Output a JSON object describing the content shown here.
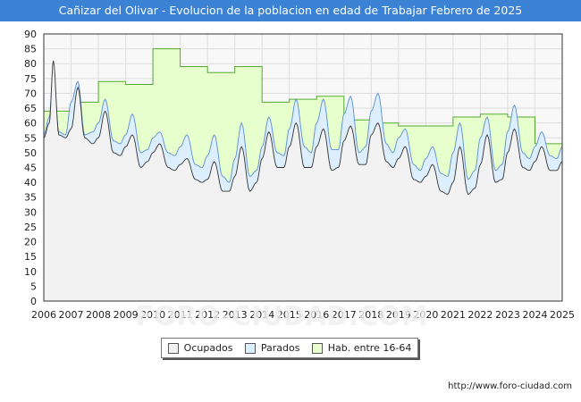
{
  "chart_data": {
    "type": "area",
    "title": "Cañizar del Olivar - Evolucion de la poblacion en edad de Trabajar Febrero de 2025",
    "xlabel": "",
    "ylabel": "",
    "ylim": [
      0,
      90
    ],
    "yticks": [
      0,
      5,
      10,
      15,
      20,
      25,
      30,
      35,
      40,
      45,
      50,
      55,
      60,
      65,
      70,
      75,
      80,
      85,
      90
    ],
    "xticks": [
      "2006",
      "2007",
      "2008",
      "2009",
      "2010",
      "2011",
      "2012",
      "2013",
      "2014",
      "2015",
      "2016",
      "2017",
      "2018",
      "2019",
      "2020",
      "2021",
      "2022",
      "2023",
      "2024",
      "2025"
    ],
    "grid": true,
    "legend": [
      "Ocupados",
      "Parados",
      "Hab. entre 16-64"
    ],
    "legend_position": "bottom",
    "series": [
      {
        "name": "Hab. entre 16-64",
        "x": [
          2006,
          2007,
          2007,
          2008,
          2008,
          2009,
          2009,
          2010,
          2010,
          2011,
          2011,
          2012,
          2012,
          2013,
          2013,
          2014,
          2014,
          2015,
          2015,
          2016,
          2016,
          2017,
          2017,
          2018,
          2018,
          2019,
          2019,
          2020,
          2020,
          2021,
          2021,
          2022,
          2022,
          2023,
          2023,
          2024,
          2024,
          2025
        ],
        "values": [
          64,
          64,
          67,
          67,
          74,
          74,
          73,
          73,
          85,
          85,
          79,
          79,
          77,
          77,
          79,
          79,
          67,
          67,
          68,
          68,
          69,
          69,
          61,
          61,
          60,
          60,
          59,
          59,
          59,
          59,
          62,
          62,
          63,
          63,
          62,
          62,
          53,
          53
        ]
      },
      {
        "name": "Parados",
        "peaks": [
          [
            2006.0,
            56
          ],
          [
            2006.2,
            62
          ],
          [
            2006.35,
            78
          ],
          [
            2006.55,
            57
          ],
          [
            2006.8,
            56
          ],
          [
            2007.0,
            67
          ],
          [
            2007.25,
            74
          ],
          [
            2007.5,
            56
          ],
          [
            2007.8,
            57
          ],
          [
            2008.0,
            60
          ],
          [
            2008.25,
            68
          ],
          [
            2008.55,
            54
          ],
          [
            2008.8,
            53
          ],
          [
            2009.0,
            56
          ],
          [
            2009.25,
            63
          ],
          [
            2009.55,
            50
          ],
          [
            2009.8,
            51
          ],
          [
            2010.0,
            55
          ],
          [
            2010.25,
            57
          ],
          [
            2010.55,
            50
          ],
          [
            2010.8,
            49
          ],
          [
            2011.0,
            52
          ],
          [
            2011.25,
            56
          ],
          [
            2011.55,
            46
          ],
          [
            2011.8,
            45
          ],
          [
            2012.0,
            49
          ],
          [
            2012.25,
            56
          ],
          [
            2012.55,
            42
          ],
          [
            2012.8,
            40
          ],
          [
            2013.0,
            48
          ],
          [
            2013.25,
            60
          ],
          [
            2013.55,
            42
          ],
          [
            2013.8,
            44
          ],
          [
            2014.0,
            52
          ],
          [
            2014.25,
            62
          ],
          [
            2014.55,
            50
          ],
          [
            2014.8,
            49
          ],
          [
            2015.0,
            58
          ],
          [
            2015.25,
            68
          ],
          [
            2015.55,
            52
          ],
          [
            2015.8,
            50
          ],
          [
            2016.0,
            60
          ],
          [
            2016.25,
            68
          ],
          [
            2016.55,
            51
          ],
          [
            2016.8,
            51
          ],
          [
            2017.0,
            63
          ],
          [
            2017.25,
            69
          ],
          [
            2017.55,
            50
          ],
          [
            2017.8,
            52
          ],
          [
            2018.0,
            64
          ],
          [
            2018.25,
            70
          ],
          [
            2018.55,
            53
          ],
          [
            2018.8,
            50
          ],
          [
            2019.0,
            55
          ],
          [
            2019.25,
            58
          ],
          [
            2019.55,
            46
          ],
          [
            2019.8,
            44
          ],
          [
            2020.0,
            48
          ],
          [
            2020.25,
            52
          ],
          [
            2020.55,
            43
          ],
          [
            2020.8,
            42
          ],
          [
            2021.0,
            50
          ],
          [
            2021.25,
            60
          ],
          [
            2021.55,
            41
          ],
          [
            2021.8,
            44
          ],
          [
            2022.0,
            55
          ],
          [
            2022.25,
            62
          ],
          [
            2022.55,
            44
          ],
          [
            2022.8,
            46
          ],
          [
            2023.0,
            57
          ],
          [
            2023.25,
            66
          ],
          [
            2023.55,
            50
          ],
          [
            2023.8,
            48
          ],
          [
            2024.0,
            52
          ],
          [
            2024.25,
            57
          ],
          [
            2024.55,
            49
          ],
          [
            2024.8,
            48
          ],
          [
            2025.0,
            52
          ]
        ]
      },
      {
        "name": "Ocupados",
        "peaks": [
          [
            2006.0,
            55
          ],
          [
            2006.2,
            60
          ],
          [
            2006.35,
            81
          ],
          [
            2006.55,
            56
          ],
          [
            2006.8,
            55
          ],
          [
            2007.0,
            58
          ],
          [
            2007.25,
            72
          ],
          [
            2007.5,
            55
          ],
          [
            2007.8,
            53
          ],
          [
            2008.0,
            55
          ],
          [
            2008.25,
            64
          ],
          [
            2008.55,
            50
          ],
          [
            2008.8,
            49
          ],
          [
            2009.0,
            52
          ],
          [
            2009.25,
            56
          ],
          [
            2009.55,
            45
          ],
          [
            2009.8,
            47
          ],
          [
            2010.0,
            50
          ],
          [
            2010.25,
            53
          ],
          [
            2010.55,
            45
          ],
          [
            2010.8,
            44
          ],
          [
            2011.0,
            46
          ],
          [
            2011.25,
            48
          ],
          [
            2011.55,
            41
          ],
          [
            2011.8,
            40
          ],
          [
            2012.0,
            41
          ],
          [
            2012.25,
            47
          ],
          [
            2012.55,
            37
          ],
          [
            2012.8,
            37
          ],
          [
            2013.0,
            42
          ],
          [
            2013.25,
            52
          ],
          [
            2013.55,
            37
          ],
          [
            2013.8,
            40
          ],
          [
            2014.0,
            48
          ],
          [
            2014.25,
            57
          ],
          [
            2014.55,
            45
          ],
          [
            2014.8,
            45
          ],
          [
            2015.0,
            52
          ],
          [
            2015.25,
            60
          ],
          [
            2015.55,
            45
          ],
          [
            2015.8,
            45
          ],
          [
            2016.0,
            52
          ],
          [
            2016.25,
            58
          ],
          [
            2016.55,
            44
          ],
          [
            2016.8,
            45
          ],
          [
            2017.0,
            54
          ],
          [
            2017.25,
            59
          ],
          [
            2017.55,
            46
          ],
          [
            2017.8,
            46
          ],
          [
            2018.0,
            56
          ],
          [
            2018.25,
            60
          ],
          [
            2018.55,
            47
          ],
          [
            2018.8,
            45
          ],
          [
            2019.0,
            48
          ],
          [
            2019.25,
            52
          ],
          [
            2019.55,
            41
          ],
          [
            2019.8,
            40
          ],
          [
            2020.0,
            42
          ],
          [
            2020.25,
            46
          ],
          [
            2020.55,
            37
          ],
          [
            2020.8,
            36
          ],
          [
            2021.0,
            40
          ],
          [
            2021.25,
            52
          ],
          [
            2021.55,
            36
          ],
          [
            2021.8,
            38
          ],
          [
            2022.0,
            46
          ],
          [
            2022.25,
            56
          ],
          [
            2022.55,
            40
          ],
          [
            2022.8,
            41
          ],
          [
            2023.0,
            50
          ],
          [
            2023.25,
            58
          ],
          [
            2023.55,
            45
          ],
          [
            2023.8,
            44
          ],
          [
            2024.0,
            47
          ],
          [
            2024.25,
            52
          ],
          [
            2024.55,
            44
          ],
          [
            2024.8,
            44
          ],
          [
            2025.0,
            47
          ]
        ]
      }
    ]
  },
  "colors": {
    "title_bg": "#3c82d4",
    "hab_fill": "#e6ffcc",
    "hab_line": "#55aa33",
    "parados_fill": "#ddeeff",
    "parados_line": "#5b8fcf",
    "ocupados_fill": "#f2f2f2",
    "ocupados_line": "#333333",
    "grid": "#dddddd"
  },
  "source_text": "http://www.foro-ciudad.com",
  "watermark": "FORO-CIUDAD.COM"
}
